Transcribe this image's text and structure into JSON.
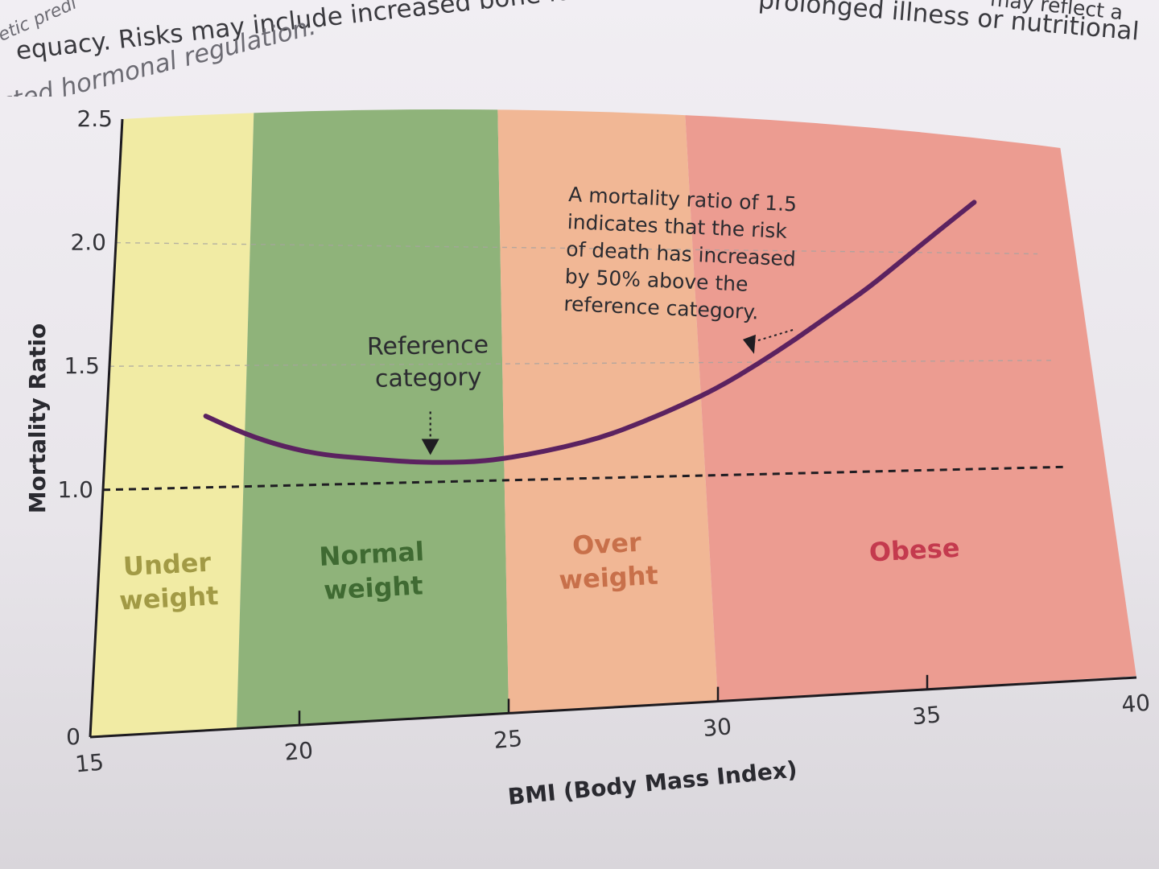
{
  "book_text": {
    "lines": [
      {
        "text": "etic predi",
        "style": "italic"
      },
      {
        "text": "equacy. Risks may include increased bone loss, compromised immune function, and",
        "style": "normal"
      },
      {
        "text": "cted hormonal regulation.",
        "style": "italic"
      },
      {
        "text": "prolonged illness or nutritional",
        "style": "normal"
      },
      {
        "text": "may reflect a",
        "style": "normal"
      }
    ]
  },
  "chart_data": {
    "type": "line",
    "xlabel": "BMI (Body Mass Index)",
    "ylabel": "Mortality Ratio",
    "xlim": [
      15,
      40
    ],
    "ylim": [
      0,
      2.5
    ],
    "x_ticks": [
      15,
      20,
      25,
      30,
      35,
      40
    ],
    "y_ticks": [
      {
        "value": 0,
        "label": "0"
      },
      {
        "value": 1.0,
        "label": "1.0"
      },
      {
        "value": 1.5,
        "label": "1.5"
      },
      {
        "value": 2.0,
        "label": "2.0"
      },
      {
        "value": 2.5,
        "label": "2.5"
      }
    ],
    "gridlines_y": [
      1.5,
      2.0
    ],
    "reference_line": 1.0,
    "categories": [
      {
        "name": "Under weight",
        "lines": [
          "Under",
          "weight"
        ],
        "x_range": [
          15,
          18.5
        ],
        "color": "#f1eba4",
        "label_color": "#a29a45"
      },
      {
        "name": "Normal weight",
        "lines": [
          "Normal",
          "weight"
        ],
        "x_range": [
          18.5,
          25
        ],
        "color": "#8fb37a",
        "label_color": "#3f6a32"
      },
      {
        "name": "Over weight",
        "lines": [
          "Over",
          "weight"
        ],
        "x_range": [
          25,
          30
        ],
        "color": "#f1b795",
        "label_color": "#c8704a"
      },
      {
        "name": "Obese",
        "lines": [
          "Obese"
        ],
        "x_range": [
          30,
          40
        ],
        "color": "#ec9c91",
        "label_color": "#c43a4e"
      }
    ],
    "series": [
      {
        "color": "#5b2260",
        "x": [
          17.5,
          18.5,
          19.5,
          20.5,
          21.5,
          22.5,
          23.5,
          24.5,
          25.5,
          26.5,
          27.5,
          28.5,
          29.5,
          30.5,
          31.5,
          32.5,
          33.5,
          34.5,
          35.5,
          36.5,
          37.5
        ],
        "y": [
          1.28,
          1.2,
          1.14,
          1.1,
          1.08,
          1.06,
          1.05,
          1.05,
          1.07,
          1.1,
          1.14,
          1.2,
          1.27,
          1.35,
          1.45,
          1.56,
          1.68,
          1.8,
          1.94,
          2.08,
          2.22
        ]
      }
    ],
    "annotations": [
      {
        "lines": [
          "Reference",
          "category"
        ],
        "target": {
          "x": 23.2,
          "y": 1.07
        }
      },
      {
        "lines": [
          "A mortality ratio of 1.5",
          "indicates that the risk",
          "of death has increased",
          "by 50% above the",
          "reference category."
        ],
        "target": {
          "x": 31.5,
          "y": 1.5
        }
      }
    ]
  }
}
